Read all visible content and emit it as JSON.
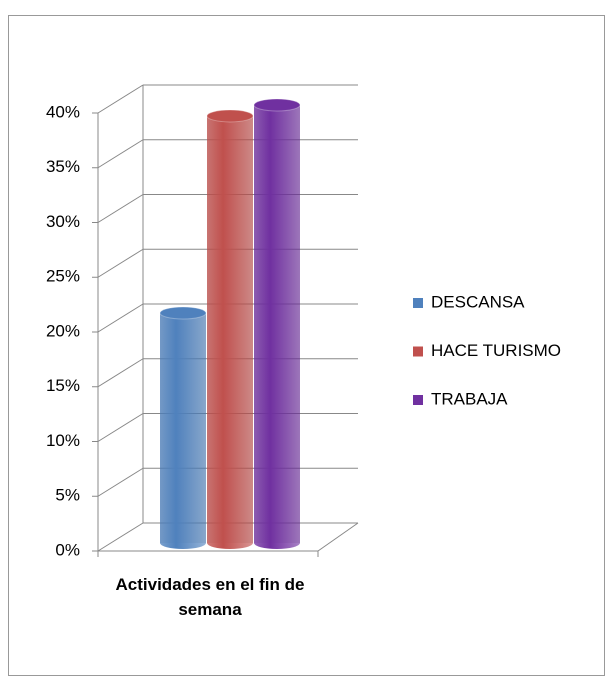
{
  "chart_data": {
    "type": "bar3d",
    "categories": [
      "Actividades en el fin de semana"
    ],
    "series": [
      {
        "name": "DESCANSA",
        "color": "#4f81bd",
        "values": [
          21
        ]
      },
      {
        "name": "HACE TURISMO",
        "color": "#c0504d",
        "values": [
          39
        ]
      },
      {
        "name": "TRABAJA",
        "color": "#7030a0",
        "values": [
          40
        ]
      }
    ],
    "ylim": [
      0,
      40
    ],
    "yticks": [
      {
        "value": 0,
        "label": "0%"
      },
      {
        "value": 5,
        "label": "5%"
      },
      {
        "value": 10,
        "label": "10%"
      },
      {
        "value": 15,
        "label": "15%"
      },
      {
        "value": 20,
        "label": "20%"
      },
      {
        "value": 25,
        "label": "25%"
      },
      {
        "value": 30,
        "label": "30%"
      },
      {
        "value": 35,
        "label": "35%"
      },
      {
        "value": 40,
        "label": "40%"
      }
    ],
    "grid": true,
    "legend": "right"
  }
}
